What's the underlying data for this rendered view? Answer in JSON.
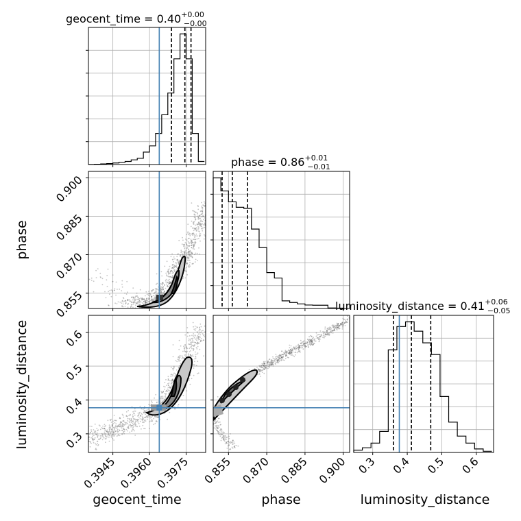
{
  "chart_data": {
    "type": "corner",
    "parameters": [
      "geocent_time",
      "phase",
      "luminosity_distance"
    ],
    "titles": {
      "geocent_time": {
        "name": "geocent_time",
        "value": "0.40",
        "plus": "+0.00",
        "minus": "−0.00"
      },
      "phase": {
        "name": "phase",
        "value": "0.86",
        "plus": "+0.01",
        "minus": "−0.01"
      },
      "luminosity_distance": {
        "name": "luminosity_distance",
        "value": "0.41",
        "plus": "+0.06",
        "minus": "−0.05"
      }
    },
    "axis_labels": {
      "geocent_time": "geocent_time",
      "phase": "phase",
      "luminosity_distance": "luminosity_distance"
    },
    "ranges": {
      "geocent_time": [
        0.3935,
        0.3983
      ],
      "phase": [
        0.849,
        0.9025
      ],
      "luminosity_distance": [
        0.245,
        0.65
      ]
    },
    "ticks": {
      "geocent_time": [
        "0.3945",
        "0.3960",
        "0.3975"
      ],
      "phase": [
        "0.855",
        "0.870",
        "0.885",
        "0.900"
      ],
      "luminosity_distance": [
        "0.3",
        "0.4",
        "0.5",
        "0.6"
      ]
    },
    "tick_values": {
      "geocent_time": [
        0.3945,
        0.396,
        0.3975
      ],
      "phase": [
        0.855,
        0.87,
        0.885,
        0.9
      ],
      "luminosity_distance": [
        0.3,
        0.4,
        0.5,
        0.6
      ]
    },
    "truths": {
      "geocent_time": 0.3964,
      "luminosity_distance": 0.377
    },
    "quantiles": {
      "geocent_time": [
        0.3969,
        0.39745,
        0.3977
      ],
      "phase": [
        0.8525,
        0.8565,
        0.8625
      ],
      "luminosity_distance": [
        0.36,
        0.412,
        0.468
      ]
    },
    "histograms": {
      "geocent_time": {
        "edges": [
          0.3935,
          0.39375,
          0.394,
          0.39425,
          0.3945,
          0.39475,
          0.395,
          0.39525,
          0.3955,
          0.39575,
          0.396,
          0.39625,
          0.3965,
          0.39675,
          0.397,
          0.39725,
          0.3975,
          0.39775,
          0.398,
          0.39825
        ],
        "counts": [
          0,
          1,
          2,
          3,
          5,
          7,
          10,
          15,
          20,
          40,
          60,
          100,
          160,
          230,
          340,
          420,
          340,
          100,
          10
        ]
      },
      "phase": {
        "edges": [
          0.849,
          0.852,
          0.855,
          0.858,
          0.861,
          0.864,
          0.867,
          0.87,
          0.873,
          0.876,
          0.879,
          0.882,
          0.885,
          0.888,
          0.891,
          0.894,
          0.897,
          0.9
        ],
        "counts": [
          1200,
          1080,
          980,
          930,
          920,
          730,
          560,
          330,
          280,
          70,
          55,
          42,
          32,
          30,
          30,
          5,
          3
        ]
      },
      "luminosity_distance": {
        "edges": [
          0.245,
          0.27,
          0.295,
          0.32,
          0.345,
          0.37,
          0.395,
          0.42,
          0.445,
          0.47,
          0.495,
          0.52,
          0.545,
          0.57,
          0.595,
          0.62,
          0.645
        ],
        "counts": [
          10,
          20,
          40,
          90,
          440,
          540,
          560,
          520,
          470,
          420,
          240,
          130,
          70,
          40,
          15,
          5
        ]
      }
    },
    "color": "#000000",
    "truth_color": "#4682b4",
    "grid": true
  }
}
